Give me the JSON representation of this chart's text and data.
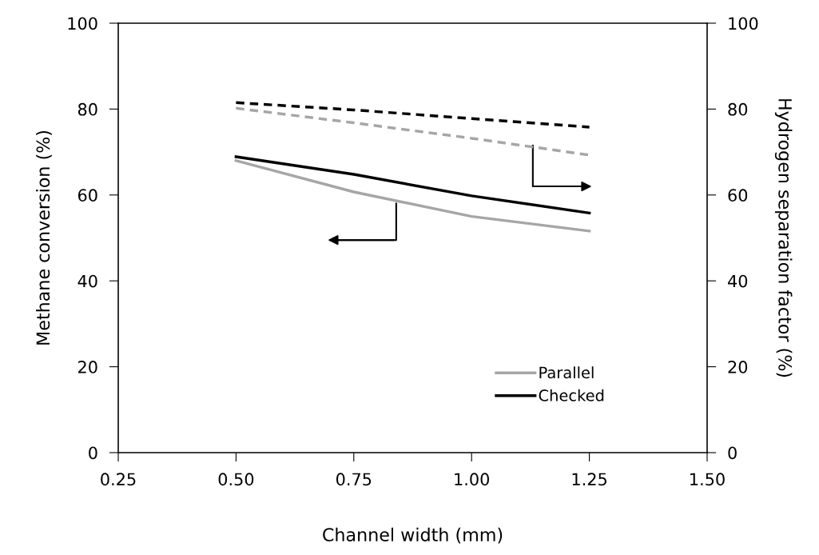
{
  "chart_data": {
    "type": "line",
    "xlabel": "Channel width (mm)",
    "ylabel": "Methane conversion (%)",
    "y2label": "Hydrogen separation factor (%)",
    "xlim": [
      0.25,
      1.5
    ],
    "xticks": [
      {
        "value": 0.25,
        "label": "0.25"
      },
      {
        "value": 0.5,
        "label": "0.50"
      },
      {
        "value": 0.75,
        "label": "0.75"
      },
      {
        "value": 1.0,
        "label": "1.00"
      },
      {
        "value": 1.25,
        "label": "1.25"
      },
      {
        "value": 1.5,
        "label": "1.50"
      }
    ],
    "ylim": [
      0,
      100
    ],
    "yticks": [
      0,
      20,
      40,
      60,
      80,
      100
    ],
    "y2lim": [
      0,
      100
    ],
    "y2ticks": [
      0,
      20,
      40,
      60,
      80,
      100
    ],
    "x": [
      0.5,
      0.75,
      1.0,
      1.25
    ],
    "series": [
      {
        "name": "Parallel",
        "color": "#a6a6a6",
        "values": [
          68,
          60.7,
          55,
          51.6
        ],
        "line_style": "solid"
      },
      {
        "name": "Checked",
        "color": "#000000",
        "values": [
          68.9,
          64.8,
          59.8,
          55.8
        ],
        "line_style": "solid"
      },
      {
        "color": "#a6a6a6",
        "values": [
          80.2,
          76.8,
          73.2,
          69.3
        ],
        "line_style": "dashed",
        "axis": "y2"
      },
      {
        "color": "#000000",
        "values": [
          81.5,
          79.8,
          77.8,
          75.8
        ],
        "line_style": "dashed",
        "axis": "y2"
      }
    ],
    "grid": false,
    "legend": "bottom right",
    "marker": "none"
  }
}
